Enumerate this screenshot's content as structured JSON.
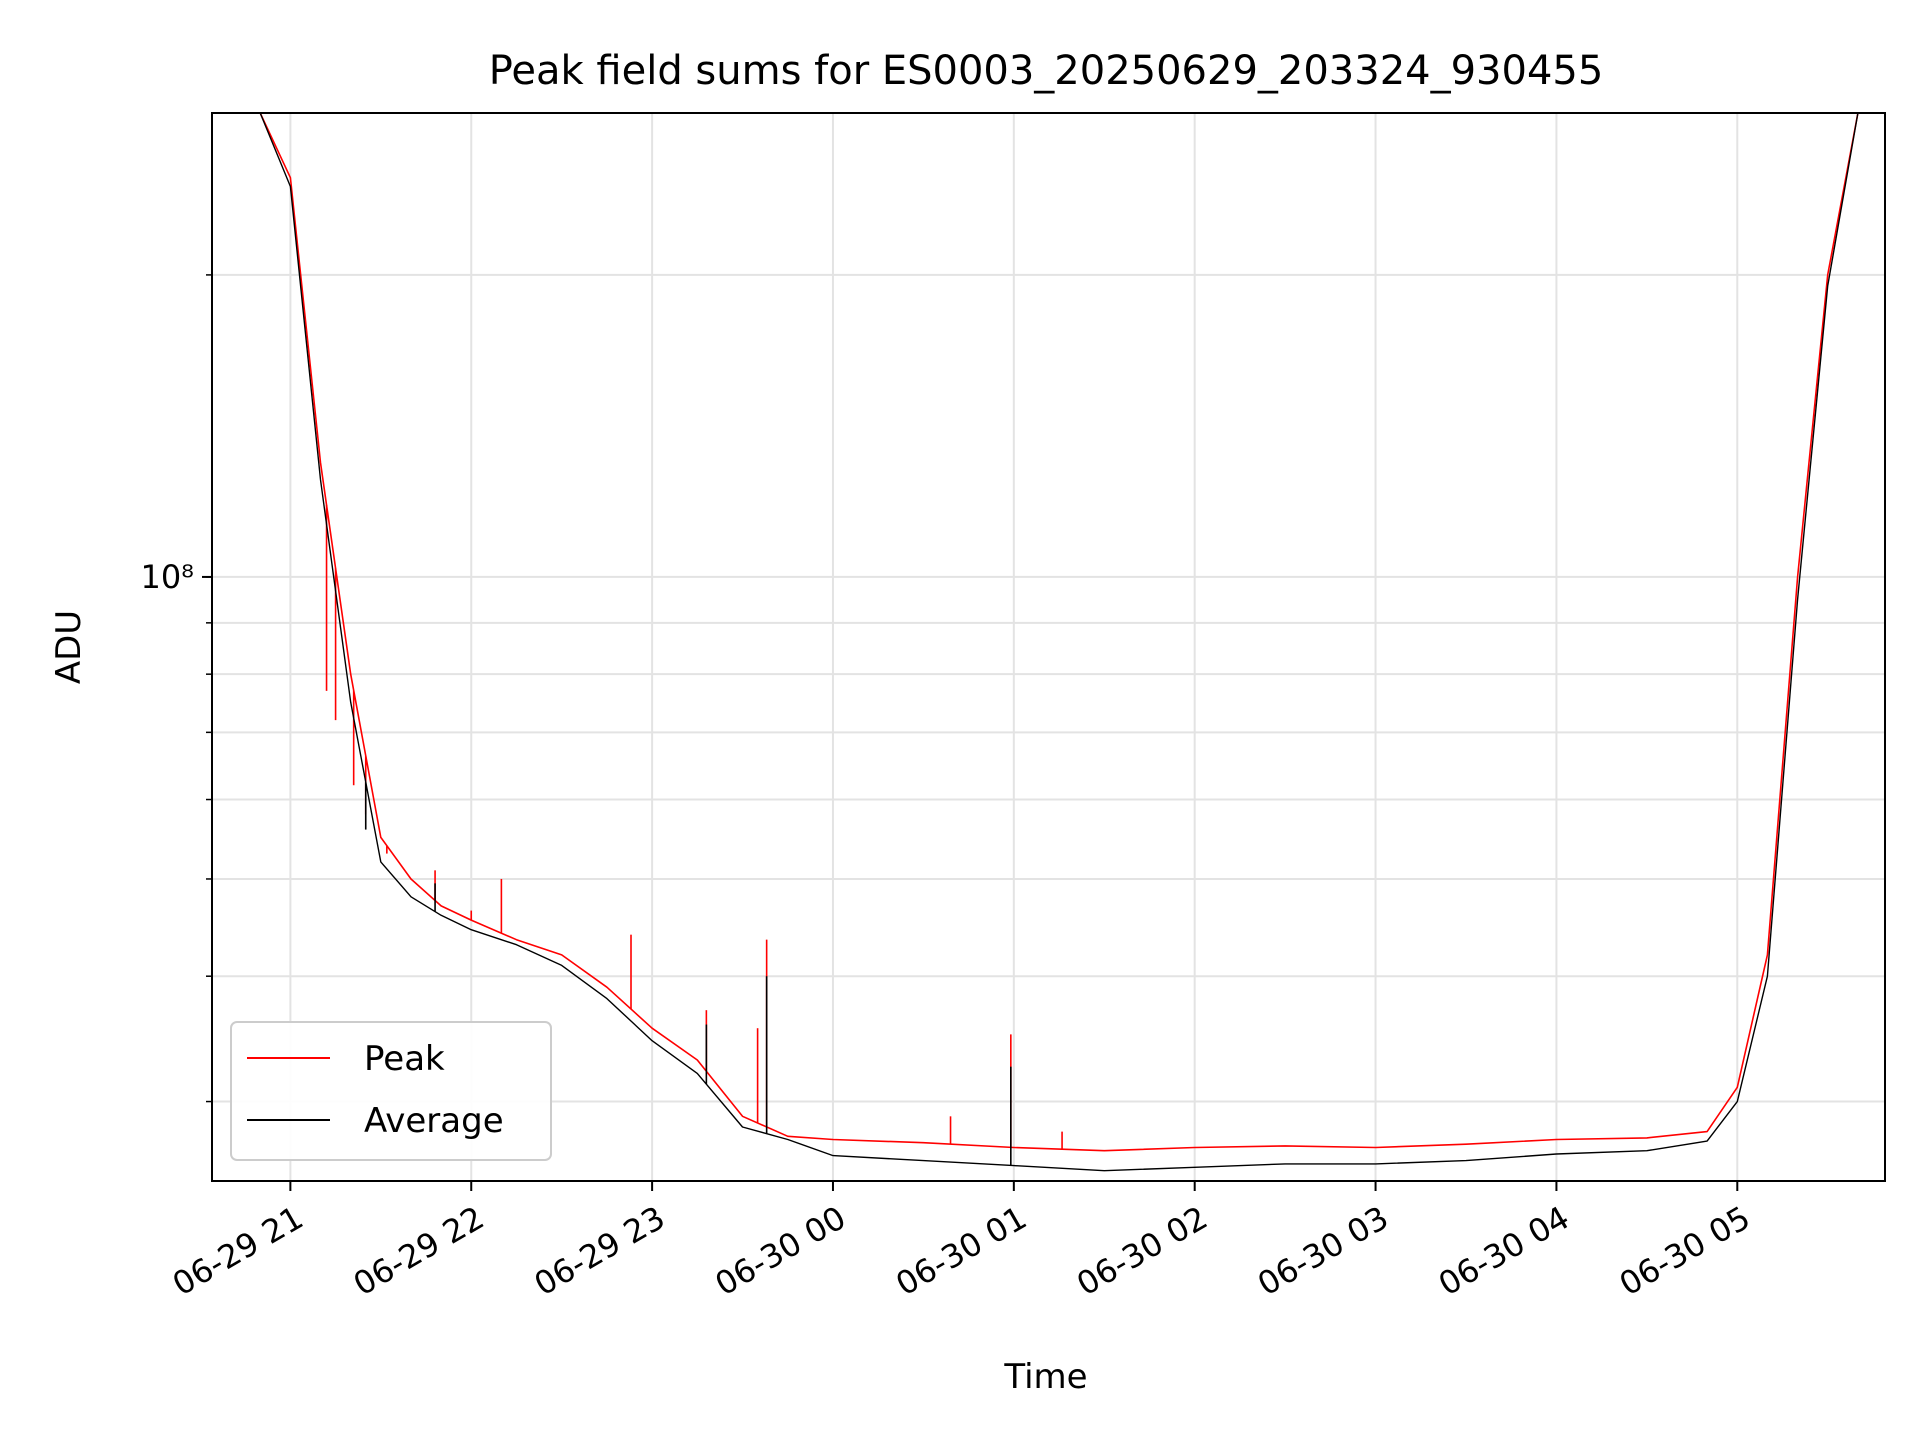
{
  "chart_data": {
    "type": "line",
    "title": "Peak field sums for ES0003_20250629_203324_930455",
    "xlabel": "Time",
    "ylabel": "ADU",
    "yscale": "log",
    "ylim": [
      25000000,
      290000000
    ],
    "xlim": [
      "2025-06-29 20:34",
      "2025-06-30 05:49"
    ],
    "x_ticks": [
      "06-29 21",
      "06-29 22",
      "06-29 23",
      "06-30 00",
      "06-30 01",
      "06-30 02",
      "06-30 03",
      "06-30 04",
      "06-30 05"
    ],
    "y_tick_major_label": "10⁸",
    "grid": true,
    "legend": {
      "placement": "lower left"
    },
    "series": [
      {
        "name": "Peak",
        "color": "#ff0000",
        "x": [
          "2025-06-29 20:50",
          "2025-06-29 21:00",
          "2025-06-29 21:10",
          "2025-06-29 21:20",
          "2025-06-29 21:30",
          "2025-06-29 21:40",
          "2025-06-29 21:50",
          "2025-06-29 22:00",
          "2025-06-29 22:15",
          "2025-06-29 22:30",
          "2025-06-29 22:45",
          "2025-06-29 23:00",
          "2025-06-29 23:15",
          "2025-06-29 23:30",
          "2025-06-29 23:45",
          "2025-06-30 00:00",
          "2025-06-30 00:30",
          "2025-06-30 01:00",
          "2025-06-30 01:30",
          "2025-06-30 02:00",
          "2025-06-30 02:30",
          "2025-06-30 03:00",
          "2025-06-30 03:30",
          "2025-06-30 04:00",
          "2025-06-30 04:30",
          "2025-06-30 04:50",
          "2025-06-30 05:00",
          "2025-06-30 05:10",
          "2025-06-30 05:20",
          "2025-06-30 05:30",
          "2025-06-30 05:40"
        ],
        "values": [
          290000000,
          250000000,
          130000000,
          80000000,
          55000000,
          50000000,
          47000000,
          45500000,
          43500000,
          42000000,
          39000000,
          35500000,
          33000000,
          29000000,
          27700000,
          27500000,
          27300000,
          27000000,
          26800000,
          27000000,
          27100000,
          27000000,
          27200000,
          27500000,
          27600000,
          28000000,
          31000000,
          42000000,
          100000000,
          200000000,
          290000000
        ],
        "spikes": [
          {
            "x": "2025-06-29 21:12",
            "value": 77000000
          },
          {
            "x": "2025-06-29 21:15",
            "value": 72000000
          },
          {
            "x": "2025-06-29 21:21",
            "value": 62000000
          },
          {
            "x": "2025-06-29 21:25",
            "value": 58000000
          },
          {
            "x": "2025-06-29 21:32",
            "value": 53000000
          },
          {
            "x": "2025-06-29 21:48",
            "value": 51000000
          },
          {
            "x": "2025-06-29 22:00",
            "value": 46500000
          },
          {
            "x": "2025-06-29 22:10",
            "value": 50000000
          },
          {
            "x": "2025-06-29 22:53",
            "value": 44000000
          },
          {
            "x": "2025-06-29 23:18",
            "value": 37000000
          },
          {
            "x": "2025-06-29 23:35",
            "value": 35500000
          },
          {
            "x": "2025-06-29 23:38",
            "value": 43500000
          },
          {
            "x": "2025-06-30 00:39",
            "value": 29000000
          },
          {
            "x": "2025-06-30 00:59",
            "value": 35000000
          },
          {
            "x": "2025-06-30 01:16",
            "value": 28000000
          }
        ]
      },
      {
        "name": "Average",
        "color": "#000000",
        "x": [
          "2025-06-29 20:50",
          "2025-06-29 21:00",
          "2025-06-29 21:10",
          "2025-06-29 21:20",
          "2025-06-29 21:30",
          "2025-06-29 21:40",
          "2025-06-29 21:50",
          "2025-06-29 22:00",
          "2025-06-29 22:15",
          "2025-06-29 22:30",
          "2025-06-29 22:45",
          "2025-06-29 23:00",
          "2025-06-29 23:15",
          "2025-06-29 23:30",
          "2025-06-29 23:45",
          "2025-06-30 00:00",
          "2025-06-30 00:30",
          "2025-06-30 01:00",
          "2025-06-30 01:30",
          "2025-06-30 02:00",
          "2025-06-30 02:30",
          "2025-06-30 03:00",
          "2025-06-30 03:30",
          "2025-06-30 04:00",
          "2025-06-30 04:30",
          "2025-06-30 04:50",
          "2025-06-30 05:00",
          "2025-06-30 05:10",
          "2025-06-30 05:20",
          "2025-06-30 05:30",
          "2025-06-30 05:40"
        ],
        "values": [
          290000000,
          245000000,
          125000000,
          75000000,
          52000000,
          48000000,
          46000000,
          44500000,
          43000000,
          41000000,
          38000000,
          34500000,
          32000000,
          28300000,
          27500000,
          26500000,
          26200000,
          25900000,
          25600000,
          25800000,
          26000000,
          26000000,
          26200000,
          26600000,
          26800000,
          27400000,
          30000000,
          40000000,
          95000000,
          195000000,
          290000000
        ],
        "spikes": [
          {
            "x": "2025-06-29 21:25",
            "value": 56000000
          },
          {
            "x": "2025-06-29 21:48",
            "value": 49500000
          },
          {
            "x": "2025-06-29 23:18",
            "value": 35800000
          },
          {
            "x": "2025-06-29 23:38",
            "value": 40000000
          },
          {
            "x": "2025-06-30 00:59",
            "value": 32500000
          }
        ]
      }
    ]
  }
}
